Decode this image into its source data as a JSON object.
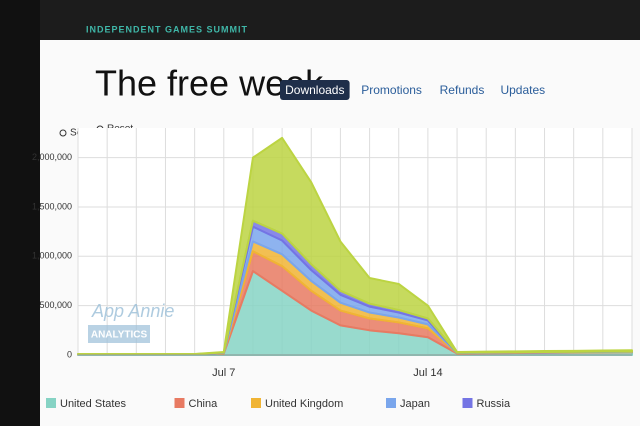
{
  "header": "INDEPENDENT GAMES SUMMIT",
  "tabs": [
    "Downloads",
    "Promotions",
    "Refunds",
    "Updates"
  ],
  "active_tab": 0,
  "controls": [
    "Scale",
    "Reset"
  ],
  "watermark": [
    "App Annie",
    "ANALYTICS"
  ],
  "chart_data": {
    "type": "stacked_area",
    "title": "The free week",
    "categories": [
      null,
      null,
      null,
      null,
      null,
      "Jul 7",
      null,
      null,
      null,
      null,
      null,
      null,
      "Jul 14",
      null,
      null,
      null,
      null,
      null,
      null,
      null
    ],
    "ylim": [
      0,
      2300000
    ],
    "yticks": [
      0,
      {
        "value": 500000,
        "label": "500,000"
      },
      {
        "value": 1000000,
        "label": "1,000,000"
      },
      {
        "value": 1500000,
        "label": "1,500,000"
      },
      {
        "value": 2000000,
        "label": "2,000,000"
      }
    ],
    "grid": true,
    "series": [
      {
        "name": "United States",
        "color": "#86d3c4",
        "values": [
          5000,
          5000,
          5000,
          5000,
          5000,
          15000,
          850000,
          650000,
          450000,
          300000,
          250000,
          220000,
          180000,
          15000,
          18000,
          20000,
          22000,
          24000,
          26000,
          28000
        ]
      },
      {
        "name": "China",
        "color": "#e87a62",
        "values": [
          1000,
          1000,
          1000,
          1000,
          1000,
          3000,
          200000,
          250000,
          200000,
          150000,
          120000,
          110000,
          90000,
          3000,
          3000,
          3000,
          3000,
          3000,
          3000,
          3000
        ]
      },
      {
        "name": "United Kingdom",
        "color": "#f0b434",
        "values": [
          1000,
          1000,
          1000,
          1000,
          1000,
          3000,
          100000,
          120000,
          100000,
          80000,
          60000,
          50000,
          40000,
          2000,
          2000,
          2000,
          2000,
          2000,
          2000,
          2000
        ]
      },
      {
        "name": "Japan",
        "color": "#7aa6ec",
        "values": [
          1000,
          1000,
          1000,
          1000,
          1000,
          3000,
          150000,
          140000,
          110000,
          80000,
          60000,
          50000,
          40000,
          2000,
          2000,
          2000,
          2000,
          2000,
          2000,
          2000
        ]
      },
      {
        "name": "Russia",
        "color": "#7474e4",
        "values": [
          500,
          500,
          500,
          500,
          500,
          1000,
          60000,
          70000,
          60000,
          40000,
          30000,
          25000,
          20000,
          1000,
          1000,
          1000,
          1000,
          1000,
          1000,
          1000
        ]
      },
      {
        "color": "#bcd442",
        "values": [
          1500,
          1500,
          1500,
          1500,
          1500,
          5000,
          640000,
          970000,
          830000,
          500000,
          260000,
          265000,
          130000,
          7000,
          8000,
          9000,
          10000,
          10000,
          11000,
          12000
        ]
      }
    ]
  }
}
